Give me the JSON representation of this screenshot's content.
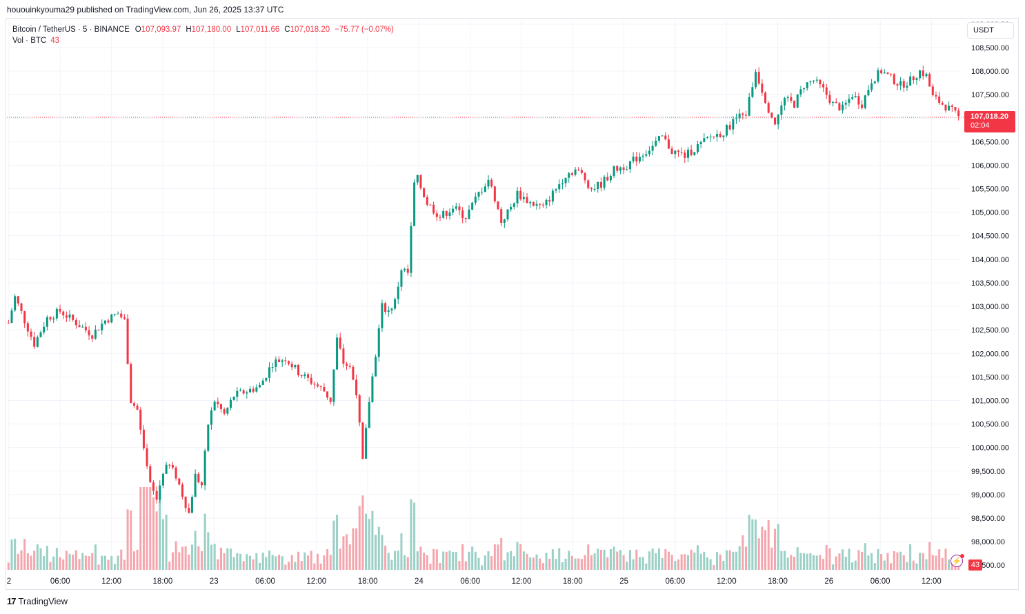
{
  "header": {
    "published_text": "hououinkyouma29 published on TradingView.com, Jun 26, 2025 13:37 UTC"
  },
  "legend": {
    "symbol": "Bitcoin / TetherUS · 5 · BINANCE",
    "open_label": "O",
    "open": "107,093.97",
    "high_label": "H",
    "high": "107,180.00",
    "low_label": "L",
    "low": "107,011.66",
    "close_label": "C",
    "close": "107,018.20",
    "change": "−75.77 (−0.07%)",
    "volume_label": "Vol · BTC",
    "volume": "43"
  },
  "toolbar": {
    "currency": "USDT"
  },
  "price_tag": {
    "price": "107,018.20",
    "countdown": "02:04"
  },
  "brand": {
    "name": "TradingView",
    "logo_text": "17"
  },
  "colors": {
    "up": "#089981",
    "down": "#f23645",
    "up_vol": "#9ad0c6",
    "down_vol": "#f5a6ad",
    "grid": "#f0f3fa"
  },
  "chart_data": {
    "type": "candlestick",
    "symbol": "BTCUSDT",
    "interval": "5",
    "x_tick_labels": [
      "2",
      "06:00",
      "12:00",
      "18:00",
      "23",
      "06:00",
      "12:00",
      "18:00",
      "24",
      "06:00",
      "12:00",
      "18:00",
      "25",
      "06:00",
      "12:00",
      "18:00",
      "26",
      "06:00",
      "12:00"
    ],
    "y_tick_labels": [
      "97,500.00",
      "98,000.00",
      "98,500.00",
      "99,000.00",
      "99,500.00",
      "100,000.00",
      "100,500.00",
      "101,000.00",
      "101,500.00",
      "102,000.00",
      "102,500.00",
      "103,000.00",
      "103,500.00",
      "104,000.00",
      "104,500.00",
      "105,000.00",
      "105,500.00",
      "106,000.00",
      "106,500.00",
      "107,000.00",
      "107,500.00",
      "108,000.00",
      "108,500.00",
      "109,000.00"
    ],
    "ylim": [
      97400,
      109100
    ],
    "last_price": 107018.2,
    "price_path": [
      {
        "t": 0,
        "p": 102650
      },
      {
        "t": 2,
        "p": 103200
      },
      {
        "t": 5,
        "p": 102700
      },
      {
        "t": 8,
        "p": 102200
      },
      {
        "t": 12,
        "p": 102750
      },
      {
        "t": 16,
        "p": 102900
      },
      {
        "t": 22,
        "p": 102600
      },
      {
        "t": 26,
        "p": 102400
      },
      {
        "t": 30,
        "p": 102700
      },
      {
        "t": 34,
        "p": 102850
      },
      {
        "t": 36,
        "p": 102700
      },
      {
        "t": 38,
        "p": 101000
      },
      {
        "t": 40,
        "p": 100800
      },
      {
        "t": 42,
        "p": 99900
      },
      {
        "t": 44,
        "p": 99200
      },
      {
        "t": 46,
        "p": 98900
      },
      {
        "t": 48,
        "p": 99500
      },
      {
        "t": 50,
        "p": 99600
      },
      {
        "t": 52,
        "p": 99400
      },
      {
        "t": 54,
        "p": 99000
      },
      {
        "t": 56,
        "p": 98600
      },
      {
        "t": 58,
        "p": 99400
      },
      {
        "t": 60,
        "p": 99200
      },
      {
        "t": 62,
        "p": 100500
      },
      {
        "t": 64,
        "p": 101000
      },
      {
        "t": 67,
        "p": 100700
      },
      {
        "t": 70,
        "p": 101100
      },
      {
        "t": 74,
        "p": 101200
      },
      {
        "t": 78,
        "p": 101300
      },
      {
        "t": 82,
        "p": 101800
      },
      {
        "t": 86,
        "p": 101900
      },
      {
        "t": 90,
        "p": 101600
      },
      {
        "t": 94,
        "p": 101400
      },
      {
        "t": 98,
        "p": 101200
      },
      {
        "t": 100,
        "p": 101000
      },
      {
        "t": 102,
        "p": 102300
      },
      {
        "t": 104,
        "p": 101800
      },
      {
        "t": 106,
        "p": 101700
      },
      {
        "t": 108,
        "p": 101200
      },
      {
        "t": 110,
        "p": 99700
      },
      {
        "t": 112,
        "p": 101000
      },
      {
        "t": 114,
        "p": 102000
      },
      {
        "t": 116,
        "p": 103000
      },
      {
        "t": 118,
        "p": 102900
      },
      {
        "t": 120,
        "p": 103100
      },
      {
        "t": 122,
        "p": 103800
      },
      {
        "t": 124,
        "p": 103700
      },
      {
        "t": 126,
        "p": 105600
      },
      {
        "t": 127,
        "p": 105700
      },
      {
        "t": 130,
        "p": 105200
      },
      {
        "t": 134,
        "p": 104900
      },
      {
        "t": 138,
        "p": 105100
      },
      {
        "t": 142,
        "p": 104900
      },
      {
        "t": 146,
        "p": 105400
      },
      {
        "t": 149,
        "p": 105700
      },
      {
        "t": 151,
        "p": 105300
      },
      {
        "t": 153,
        "p": 104800
      },
      {
        "t": 156,
        "p": 105100
      },
      {
        "t": 158,
        "p": 105400
      },
      {
        "t": 162,
        "p": 105200
      },
      {
        "t": 166,
        "p": 105100
      },
      {
        "t": 170,
        "p": 105500
      },
      {
        "t": 173,
        "p": 105800
      },
      {
        "t": 176,
        "p": 105900
      },
      {
        "t": 178,
        "p": 105800
      },
      {
        "t": 181,
        "p": 105500
      },
      {
        "t": 184,
        "p": 105600
      },
      {
        "t": 188,
        "p": 105900
      },
      {
        "t": 192,
        "p": 106000
      },
      {
        "t": 196,
        "p": 106200
      },
      {
        "t": 200,
        "p": 106400
      },
      {
        "t": 203,
        "p": 106600
      },
      {
        "t": 206,
        "p": 106300
      },
      {
        "t": 210,
        "p": 106200
      },
      {
        "t": 214,
        "p": 106400
      },
      {
        "t": 218,
        "p": 106600
      },
      {
        "t": 222,
        "p": 106700
      },
      {
        "t": 226,
        "p": 107000
      },
      {
        "t": 229,
        "p": 107100
      },
      {
        "t": 232,
        "p": 108000
      },
      {
        "t": 234,
        "p": 107600
      },
      {
        "t": 236,
        "p": 107200
      },
      {
        "t": 238,
        "p": 106900
      },
      {
        "t": 241,
        "p": 107400
      },
      {
        "t": 244,
        "p": 107300
      },
      {
        "t": 247,
        "p": 107700
      },
      {
        "t": 250,
        "p": 107800
      },
      {
        "t": 253,
        "p": 107600
      },
      {
        "t": 256,
        "p": 107300
      },
      {
        "t": 259,
        "p": 107200
      },
      {
        "t": 262,
        "p": 107500
      },
      {
        "t": 265,
        "p": 107300
      },
      {
        "t": 268,
        "p": 107800
      },
      {
        "t": 271,
        "p": 108000
      },
      {
        "t": 274,
        "p": 107850
      },
      {
        "t": 277,
        "p": 107700
      },
      {
        "t": 280,
        "p": 107800
      },
      {
        "t": 283,
        "p": 108000
      },
      {
        "t": 285,
        "p": 107900
      },
      {
        "t": 287,
        "p": 107450
      },
      {
        "t": 290,
        "p": 107300
      },
      {
        "t": 293,
        "p": 107150
      },
      {
        "t": 295,
        "p": 107018
      }
    ],
    "volume_unit": "BTC",
    "last_volume": 43
  }
}
